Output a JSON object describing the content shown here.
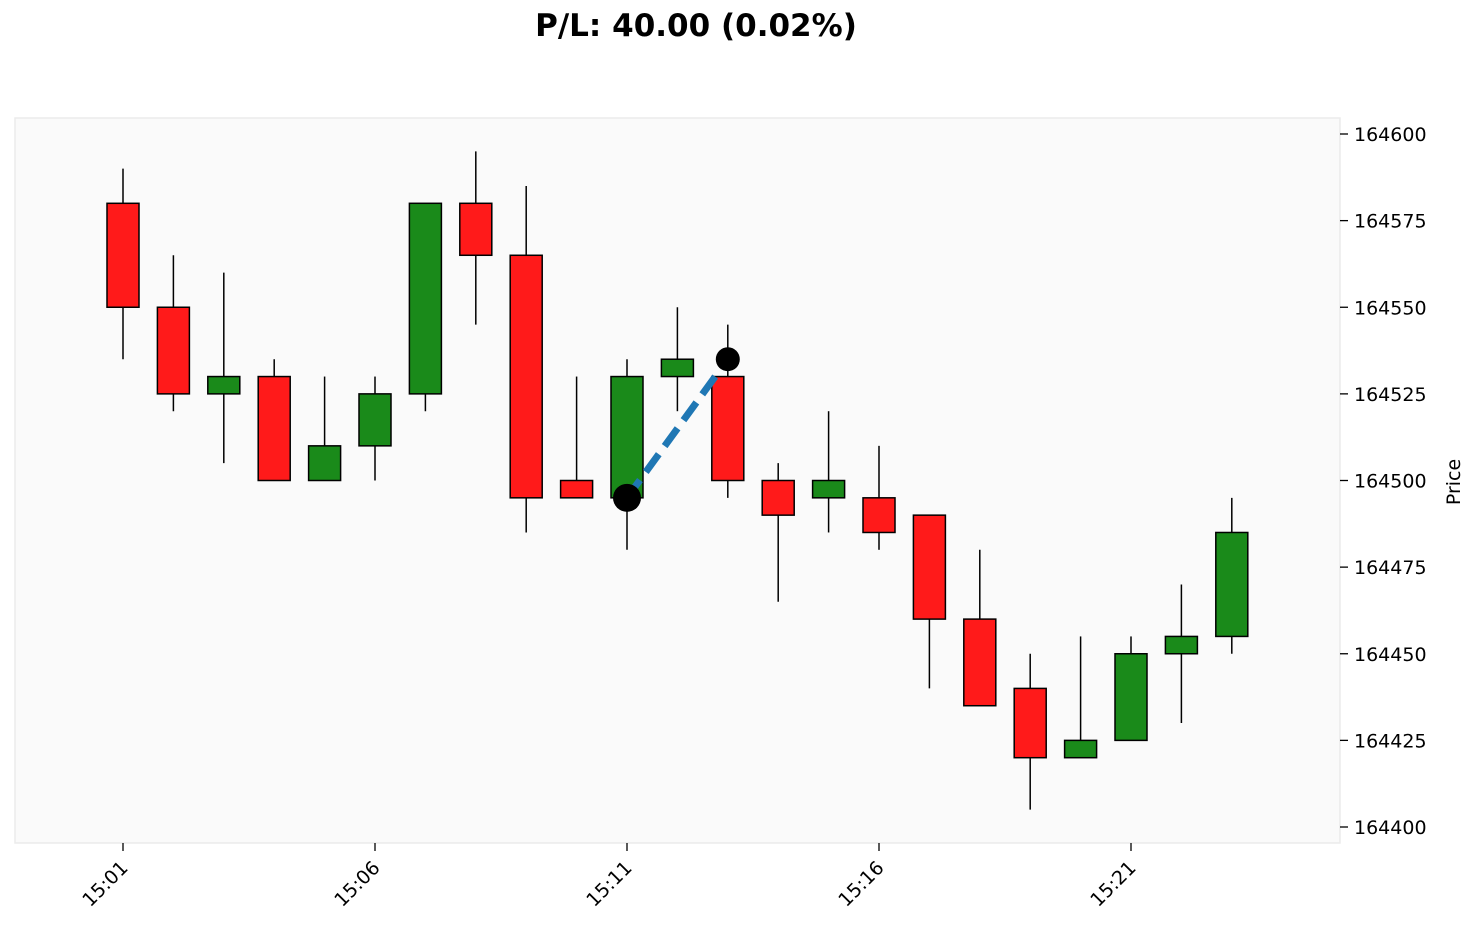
{
  "chart_data": {
    "type": "candlestick",
    "title": "P/L: 40.00 (0.02%)",
    "ylabel": "Price",
    "xlabel": "",
    "ylim": [
      164395,
      164605
    ],
    "yticks": [
      164400,
      164425,
      164450,
      164475,
      164500,
      164525,
      164550,
      164575,
      164600
    ],
    "xticks": [
      {
        "index": 0,
        "label": "15:01"
      },
      {
        "index": 5,
        "label": "15:06"
      },
      {
        "index": 10,
        "label": "15:11"
      },
      {
        "index": 15,
        "label": "15:16"
      },
      {
        "index": 20,
        "label": "15:21"
      }
    ],
    "y_axis_position": "right",
    "grid": false,
    "colors": {
      "up": "#1a8a1a",
      "down": "#ff1a1a",
      "outline": "#000000",
      "trade_line": "#1f77b4",
      "background": "#fafafa"
    },
    "candles": [
      {
        "time": "15:01",
        "open": 164580,
        "high": 164590,
        "low": 164535,
        "close": 164550
      },
      {
        "time": "15:02",
        "open": 164550,
        "high": 164565,
        "low": 164520,
        "close": 164525
      },
      {
        "time": "15:03",
        "open": 164525,
        "high": 164560,
        "low": 164505,
        "close": 164530
      },
      {
        "time": "15:04",
        "open": 164530,
        "high": 164535,
        "low": 164500,
        "close": 164500
      },
      {
        "time": "15:05",
        "open": 164500,
        "high": 164530,
        "low": 164500,
        "close": 164510
      },
      {
        "time": "15:06",
        "open": 164510,
        "high": 164530,
        "low": 164500,
        "close": 164525
      },
      {
        "time": "15:07",
        "open": 164525,
        "high": 164580,
        "low": 164520,
        "close": 164580
      },
      {
        "time": "15:08",
        "open": 164580,
        "high": 164595,
        "low": 164545,
        "close": 164565
      },
      {
        "time": "15:09",
        "open": 164565,
        "high": 164585,
        "low": 164485,
        "close": 164495
      },
      {
        "time": "15:10",
        "open": 164500,
        "high": 164530,
        "low": 164495,
        "close": 164495
      },
      {
        "time": "15:11",
        "open": 164495,
        "high": 164535,
        "low": 164480,
        "close": 164530
      },
      {
        "time": "15:12",
        "open": 164530,
        "high": 164550,
        "low": 164520,
        "close": 164535
      },
      {
        "time": "15:13",
        "open": 164530,
        "high": 164545,
        "low": 164495,
        "close": 164500
      },
      {
        "time": "15:14",
        "open": 164500,
        "high": 164505,
        "low": 164465,
        "close": 164490
      },
      {
        "time": "15:15",
        "open": 164495,
        "high": 164520,
        "low": 164485,
        "close": 164500
      },
      {
        "time": "15:16",
        "open": 164495,
        "high": 164510,
        "low": 164480,
        "close": 164485
      },
      {
        "time": "15:17",
        "open": 164490,
        "high": 164490,
        "low": 164440,
        "close": 164460
      },
      {
        "time": "15:18",
        "open": 164460,
        "high": 164480,
        "low": 164435,
        "close": 164435
      },
      {
        "time": "15:19",
        "open": 164440,
        "high": 164450,
        "low": 164405,
        "close": 164420
      },
      {
        "time": "15:20",
        "open": 164420,
        "high": 164455,
        "low": 164420,
        "close": 164425
      },
      {
        "time": "15:21",
        "open": 164425,
        "high": 164455,
        "low": 164425,
        "close": 164450
      },
      {
        "time": "15:22",
        "open": 164450,
        "high": 164470,
        "low": 164430,
        "close": 164455
      },
      {
        "time": "15:23",
        "open": 164455,
        "high": 164495,
        "low": 164450,
        "close": 164485
      }
    ],
    "trade": {
      "entry": {
        "index": 10,
        "price": 164495
      },
      "exit": {
        "index": 12,
        "price": 164535
      }
    }
  }
}
